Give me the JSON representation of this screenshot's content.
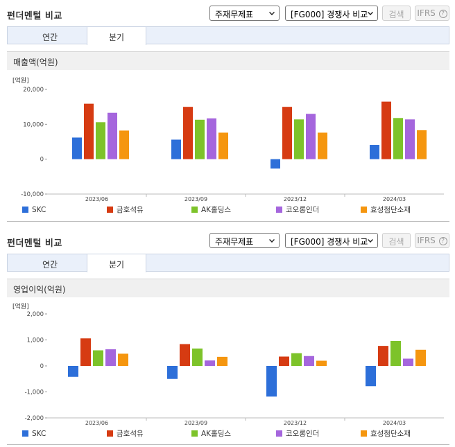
{
  "colors": [
    "#2d6fd9",
    "#d63b12",
    "#7dc32a",
    "#a566dd",
    "#f5960f"
  ],
  "sections": [
    {
      "title": "펀더멘털 비교",
      "select_statement": "주재무제표",
      "select_peer": "[FG000] 경쟁사 비교",
      "search_label": "검색",
      "ifrs_label": "IFRS",
      "ifrs_help": "?",
      "tab_annual": "연간",
      "tab_quarter": "분기",
      "panel_title": "매출액(억원)"
    },
    {
      "title": "펀더멘털 비교",
      "select_statement": "주재무제표",
      "select_peer": "[FG000] 경쟁사 비교",
      "search_label": "검색",
      "ifrs_label": "IFRS",
      "ifrs_help": "?",
      "tab_annual": "연간",
      "tab_quarter": "분기",
      "panel_title": "영업이익(억원)"
    }
  ],
  "chart_data": [
    {
      "type": "bar",
      "unit_label": "[억원]",
      "categories": [
        "2023/06",
        "2023/09",
        "2023/12",
        "2024/03"
      ],
      "ylim": [
        -10000,
        20000
      ],
      "yticks": [
        20000,
        10000,
        0,
        -10000
      ],
      "ytick_labels": [
        "20,000",
        "10,000",
        "0",
        "-10,000"
      ],
      "legend_position": "bottom",
      "series": [
        {
          "name": "SKC",
          "values": [
            6200,
            5600,
            -2700,
            4100
          ]
        },
        {
          "name": "금호석유",
          "values": [
            15900,
            15000,
            15000,
            16500
          ]
        },
        {
          "name": "AK홀딩스",
          "values": [
            10600,
            11300,
            11400,
            11800
          ]
        },
        {
          "name": "코오롱인더",
          "values": [
            13300,
            11700,
            13000,
            11400
          ]
        },
        {
          "name": "효성첨단소재",
          "values": [
            8200,
            7600,
            7600,
            8300
          ]
        }
      ]
    },
    {
      "type": "bar",
      "unit_label": "[억원]",
      "categories": [
        "2023/06",
        "2023/09",
        "2023/12",
        "2024/03"
      ],
      "ylim": [
        -2000,
        2000
      ],
      "yticks": [
        2000,
        1000,
        0,
        -1000,
        -2000
      ],
      "ytick_labels": [
        "2,000",
        "1,000",
        "0",
        "-1,000",
        "-2,000"
      ],
      "legend_position": "bottom",
      "series": [
        {
          "name": "SKC",
          "values": [
            -420,
            -500,
            -1180,
            -780
          ]
        },
        {
          "name": "금호석유",
          "values": [
            1060,
            840,
            360,
            770
          ]
        },
        {
          "name": "AK홀딩스",
          "values": [
            600,
            670,
            490,
            960
          ]
        },
        {
          "name": "코오롱인더",
          "values": [
            640,
            210,
            380,
            280
          ]
        },
        {
          "name": "효성첨단소재",
          "values": [
            470,
            350,
            200,
            620
          ]
        }
      ]
    }
  ]
}
